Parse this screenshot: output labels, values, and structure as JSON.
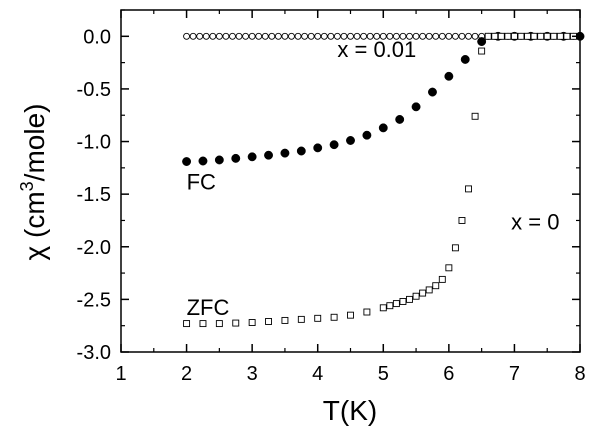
{
  "chart_data": {
    "type": "scatter",
    "xlabel": "T(K)",
    "ylabel": "χ (cm³/mole)",
    "xlim": [
      1,
      8
    ],
    "ylim": [
      -3.0,
      0.25
    ],
    "xticks": [
      1,
      2,
      3,
      4,
      5,
      6,
      7,
      8
    ],
    "xtick_labels": [
      "1",
      "2",
      "3",
      "4",
      "5",
      "6",
      "7",
      "8"
    ],
    "yticks": [
      0.0,
      -0.5,
      -1.0,
      -1.5,
      -2.0,
      -2.5,
      -3.0
    ],
    "ytick_labels": [
      "0.0",
      "-0.5",
      "-1.0",
      "-1.5",
      "-2.0",
      "-2.5",
      "-3.0"
    ],
    "grid": false,
    "annotations": [
      {
        "text": "x = 0.01",
        "x": 4.3,
        "y": -0.12
      },
      {
        "text": "FC",
        "x": 2.0,
        "y": -1.38
      },
      {
        "text": "ZFC",
        "x": 2.0,
        "y": -2.57
      },
      {
        "text": "x = 0",
        "x": 6.95,
        "y": -1.76
      }
    ],
    "series": [
      {
        "marker": "open-circle",
        "color": "#000000",
        "x": [
          2.0,
          2.1,
          2.2,
          2.3,
          2.4,
          2.5,
          2.6,
          2.7,
          2.8,
          2.9,
          3.0,
          3.1,
          3.2,
          3.3,
          3.4,
          3.5,
          3.6,
          3.7,
          3.8,
          3.9,
          4.0,
          4.1,
          4.2,
          4.3,
          4.4,
          4.5,
          4.6,
          4.7,
          4.8,
          4.9,
          5.0,
          5.1,
          5.2,
          5.3,
          5.4,
          5.5,
          5.6,
          5.7,
          5.8,
          5.9,
          6.0,
          6.1,
          6.2,
          6.3,
          6.4,
          6.5,
          6.6,
          6.7,
          6.8,
          6.9,
          7.0,
          7.1,
          7.2,
          7.3,
          7.4,
          7.5,
          7.6,
          7.7,
          7.8,
          7.9,
          8.0
        ],
        "y": [
          0.0,
          0.0,
          0.0,
          0.0,
          0.0,
          0.0,
          0.0,
          0.0,
          0.0,
          0.0,
          0.0,
          0.0,
          0.0,
          0.0,
          0.0,
          0.0,
          0.0,
          0.0,
          0.0,
          0.0,
          0.0,
          0.0,
          0.0,
          0.0,
          0.0,
          0.0,
          0.0,
          0.0,
          0.0,
          0.0,
          0.0,
          0.0,
          0.0,
          0.0,
          0.0,
          0.0,
          0.0,
          0.0,
          0.0,
          0.0,
          0.0,
          0.0,
          0.0,
          0.0,
          0.0,
          0.0,
          0.0,
          0.0,
          0.0,
          0.0,
          0.0,
          0.0,
          0.0,
          0.0,
          0.0,
          0.0,
          0.0,
          0.0,
          0.0,
          0.0,
          0.0
        ]
      },
      {
        "marker": "filled-circle",
        "color": "#000000",
        "x": [
          2.0,
          2.25,
          2.5,
          2.75,
          3.0,
          3.25,
          3.5,
          3.75,
          4.0,
          4.25,
          4.5,
          4.75,
          5.0,
          5.25,
          5.5,
          5.75,
          6.0,
          6.25,
          6.5,
          6.75,
          7.0,
          7.25,
          7.5,
          7.75,
          8.0
        ],
        "y": [
          -1.19,
          -1.185,
          -1.175,
          -1.16,
          -1.145,
          -1.13,
          -1.11,
          -1.09,
          -1.06,
          -1.03,
          -0.99,
          -0.94,
          -0.87,
          -0.79,
          -0.67,
          -0.53,
          -0.38,
          -0.22,
          -0.05,
          0.0,
          0.0,
          0.0,
          0.0,
          0.0,
          0.0
        ]
      },
      {
        "marker": "open-square",
        "color": "#000000",
        "x": [
          2.0,
          2.25,
          2.5,
          2.75,
          3.0,
          3.25,
          3.5,
          3.75,
          4.0,
          4.25,
          4.5,
          4.75,
          5.0,
          5.1,
          5.2,
          5.3,
          5.4,
          5.5,
          5.6,
          5.7,
          5.8,
          5.9,
          6.0,
          6.1,
          6.2,
          6.3,
          6.4,
          6.5,
          6.6,
          6.7,
          6.8,
          6.9,
          7.0,
          7.1,
          7.2,
          7.3,
          7.4,
          7.5,
          7.6,
          7.7,
          7.8,
          7.9
        ],
        "y": [
          -2.73,
          -2.73,
          -2.73,
          -2.725,
          -2.72,
          -2.71,
          -2.7,
          -2.69,
          -2.68,
          -2.67,
          -2.65,
          -2.62,
          -2.58,
          -2.56,
          -2.54,
          -2.52,
          -2.5,
          -2.47,
          -2.44,
          -2.41,
          -2.37,
          -2.31,
          -2.2,
          -2.01,
          -1.75,
          -1.45,
          -0.76,
          -0.14,
          0.0,
          0.0,
          0.0,
          0.0,
          0.0,
          0.0,
          0.0,
          0.0,
          0.0,
          0.0,
          0.0,
          0.0,
          0.0,
          0.0
        ]
      }
    ]
  }
}
